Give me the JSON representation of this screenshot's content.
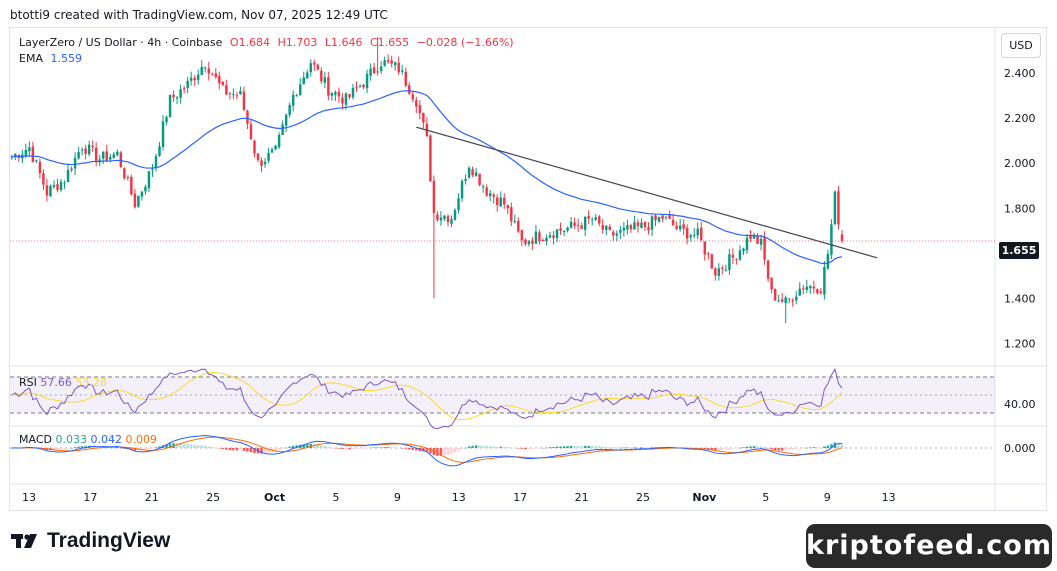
{
  "header": {
    "attribution": "btotti9 created with TradingView.com, Nov 07, 2025 12:49 UTC"
  },
  "legend": {
    "symbol": "LayerZero / US Dollar · 4h · Coinbase",
    "open": "O1.684",
    "high": "H1.703",
    "low": "L1.646",
    "close": "C1.655",
    "change": "−0.028 (−1.66%)",
    "ema_label": "EMA",
    "ema_value": "1.559"
  },
  "currency_button": "USD",
  "last_price_tag": "1.655",
  "rsi": {
    "label": "RSI",
    "value": "57.66",
    "ma_value": "53.28"
  },
  "macd": {
    "label": "MACD",
    "hist": "0.033",
    "macd": "0.042",
    "signal": "0.009"
  },
  "footer": {
    "brand": "TradingView",
    "watermark": "kriptofeed.com"
  },
  "colors": {
    "up": "#089981",
    "down": "#f23645",
    "ema": "#2962ff",
    "rsi": "#7e57c2",
    "rsi_ma": "#fdd835",
    "macd": "#2962ff",
    "signal": "#ff6d00"
  },
  "chart_data": {
    "type": "candlestick",
    "price_axis": {
      "ticks": [
        2.4,
        2.2,
        2.0,
        1.8,
        1.6,
        1.4,
        1.2
      ],
      "ylim": [
        1.1,
        2.6
      ]
    },
    "rsi_axis": {
      "ticks": [
        40
      ],
      "bands": [
        30,
        70
      ]
    },
    "macd_axis": {
      "ticks": [
        0
      ]
    },
    "x_ticks": [
      "13",
      "17",
      "21",
      "25",
      "Oct",
      "5",
      "9",
      "13",
      "17",
      "21",
      "25",
      "Nov",
      "5",
      "9",
      "13"
    ],
    "key_prices": [
      {
        "x": 0,
        "y": 2.03
      },
      {
        "x": 5,
        "y": 2.07
      },
      {
        "x": 10,
        "y": 1.87
      },
      {
        "x": 15,
        "y": 1.93
      },
      {
        "x": 20,
        "y": 2.08
      },
      {
        "x": 25,
        "y": 2.02
      },
      {
        "x": 30,
        "y": 2.04
      },
      {
        "x": 35,
        "y": 1.82
      },
      {
        "x": 40,
        "y": 1.98
      },
      {
        "x": 45,
        "y": 2.28
      },
      {
        "x": 50,
        "y": 2.35
      },
      {
        "x": 55,
        "y": 2.45
      },
      {
        "x": 60,
        "y": 2.32
      },
      {
        "x": 65,
        "y": 2.3
      },
      {
        "x": 70,
        "y": 2.0
      },
      {
        "x": 75,
        "y": 2.05
      },
      {
        "x": 80,
        "y": 2.3
      },
      {
        "x": 85,
        "y": 2.45
      },
      {
        "x": 90,
        "y": 2.33
      },
      {
        "x": 95,
        "y": 2.28
      },
      {
        "x": 100,
        "y": 2.36
      },
      {
        "x": 105,
        "y": 2.45
      },
      {
        "x": 110,
        "y": 2.42
      },
      {
        "x": 115,
        "y": 2.28
      },
      {
        "x": 118,
        "y": 2.1
      },
      {
        "x": 120,
        "y": 1.78
      },
      {
        "x": 125,
        "y": 1.76
      },
      {
        "x": 130,
        "y": 2.0
      },
      {
        "x": 135,
        "y": 1.88
      },
      {
        "x": 140,
        "y": 1.82
      },
      {
        "x": 145,
        "y": 1.65
      },
      {
        "x": 150,
        "y": 1.68
      },
      {
        "x": 155,
        "y": 1.7
      },
      {
        "x": 160,
        "y": 1.72
      },
      {
        "x": 165,
        "y": 1.75
      },
      {
        "x": 170,
        "y": 1.68
      },
      {
        "x": 175,
        "y": 1.7
      },
      {
        "x": 180,
        "y": 1.72
      },
      {
        "x": 185,
        "y": 1.76
      },
      {
        "x": 190,
        "y": 1.7
      },
      {
        "x": 195,
        "y": 1.68
      },
      {
        "x": 200,
        "y": 1.52
      },
      {
        "x": 205,
        "y": 1.58
      },
      {
        "x": 210,
        "y": 1.68
      },
      {
        "x": 213,
        "y": 1.64
      },
      {
        "x": 216,
        "y": 1.42
      },
      {
        "x": 220,
        "y": 1.38
      },
      {
        "x": 225,
        "y": 1.46
      },
      {
        "x": 230,
        "y": 1.45
      },
      {
        "x": 232,
        "y": 1.6
      },
      {
        "x": 234,
        "y": 1.85
      },
      {
        "x": 236,
        "y": 1.655
      }
    ],
    "trendline": {
      "start": {
        "x": 115,
        "y": 2.16
      },
      "end": {
        "x": 246,
        "y": 1.58
      }
    }
  }
}
